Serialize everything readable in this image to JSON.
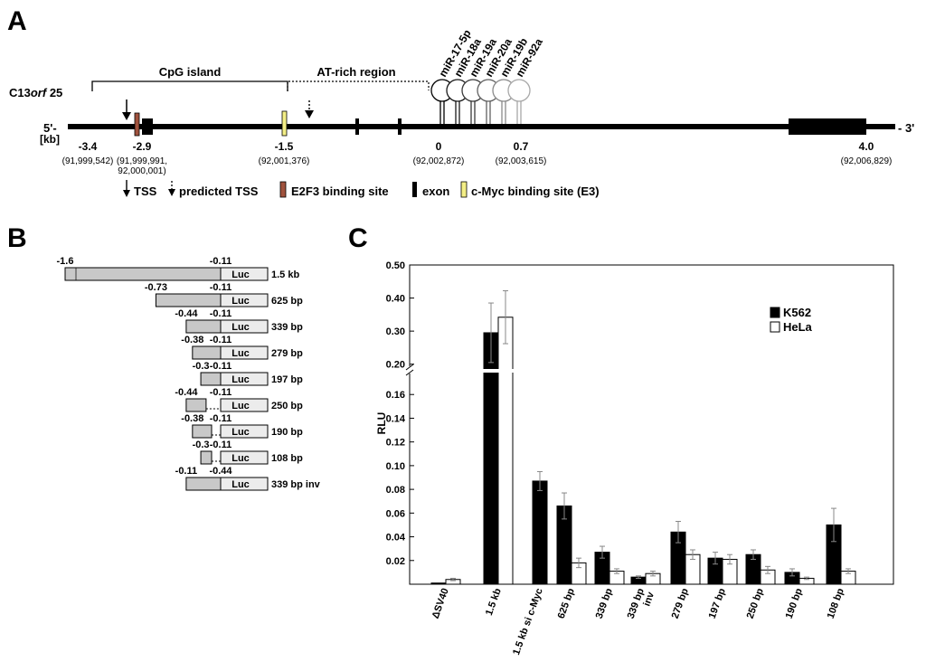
{
  "panelA": {
    "label": "A",
    "gene_prefix": "C13",
    "gene_italic": "orf",
    "gene_suffix": " 25",
    "five_prime": "5'-",
    "three_prime": "- 3'",
    "kb_label": "[kb]",
    "cpg_island": "CpG island",
    "at_rich": "AT-rich region",
    "mirnas": [
      "miR-17-5p",
      "miR-18a",
      "miR-19a",
      "miR-20a",
      "miR-19b",
      "miR-92a"
    ],
    "positions": [
      {
        "kb": "-3.4",
        "coord": "(91,999,542)"
      },
      {
        "kb": "-2.9",
        "coord": "(91,999,991,",
        "coord2": "92,000,001)"
      },
      {
        "kb": "-1.5",
        "coord": "(92,001,376)"
      },
      {
        "kb": "0",
        "coord": "(92,002,872)"
      },
      {
        "kb": "0.7",
        "coord": "(92,003,615)"
      },
      {
        "kb": "4.0",
        "coord": "(92,006,829)"
      }
    ],
    "legend": {
      "tss": "TSS",
      "predicted_tss": "predicted TSS",
      "e2f3": "E2F3 binding site",
      "exon": "exon",
      "cmyc": "c-Myc binding site (E3)"
    },
    "colors": {
      "e2f3": "#a0523d",
      "cmyc": "#f3ee86",
      "exon": "#000000"
    }
  },
  "panelB": {
    "label": "B",
    "luc": "Luc",
    "constructs": [
      {
        "start": "-1.6",
        "end": "-0.11",
        "name": "1.5 kb",
        "type": "normal"
      },
      {
        "start": "-0.73",
        "end": "-0.11",
        "name": "625 bp",
        "type": "normal"
      },
      {
        "start": "-0.44",
        "end": "-0.11",
        "name": "339 bp",
        "type": "normal"
      },
      {
        "start": "-0.38",
        "end": "-0.11",
        "name": "279 bp",
        "type": "normal"
      },
      {
        "start": "-0.3",
        "end": "-0.11",
        "name": "197 bp",
        "type": "normal"
      },
      {
        "start": "-0.44",
        "end": "-0.11",
        "name": "250 bp",
        "type": "deletion"
      },
      {
        "start": "-0.38",
        "end": "-0.11",
        "name": "190 bp",
        "type": "deletion"
      },
      {
        "start": "-0.3",
        "end": "-0.11",
        "name": "108 bp",
        "type": "deletion"
      },
      {
        "start": "-0.11",
        "end": "-0.44",
        "name": "339 bp inv",
        "type": "inverted"
      }
    ]
  },
  "panelC": {
    "label": "C"
  },
  "chart_data": {
    "type": "bar",
    "title": "",
    "xlabel": "",
    "ylabel": "RLU",
    "axis_break": {
      "lower": [
        0,
        0.18
      ],
      "upper": [
        0.18,
        0.5
      ]
    },
    "yticks": [
      "0.02",
      "0.04",
      "0.06",
      "0.08",
      "0.10",
      "0.12",
      "0.14",
      "0.16",
      "0.20",
      "0.30",
      "0.40",
      "0.50"
    ],
    "categories": [
      "ΔSV40",
      "1.5 kb",
      "1.5 kb si c-Myc",
      "625 bp",
      "339 bp",
      "339 bp inv",
      "279 bp",
      "197 bp",
      "250 bp",
      "190 bp",
      "108 bp"
    ],
    "category_lines": [
      [
        "ΔSV40"
      ],
      [
        "1.5 kb"
      ],
      [
        "1.5 kb si c-Myc"
      ],
      [
        "625 bp"
      ],
      [
        "339 bp"
      ],
      [
        "339 bp",
        "inv"
      ],
      [
        "279 bp"
      ],
      [
        "197 bp"
      ],
      [
        "250 bp"
      ],
      [
        "190 bp"
      ],
      [
        "108 bp"
      ]
    ],
    "series": [
      {
        "name": "K562",
        "color": "#000000",
        "values": [
          0.001,
          0.295,
          0.087,
          0.066,
          0.027,
          0.006,
          0.044,
          0.022,
          0.025,
          0.01,
          0.05
        ],
        "errors": [
          0,
          0.09,
          0.008,
          0.011,
          0.005,
          0.001,
          0.009,
          0.005,
          0.004,
          0.003,
          0.014
        ]
      },
      {
        "name": "HeLa",
        "color": "#ffffff",
        "values": [
          0.004,
          0.342,
          null,
          0.018,
          0.011,
          0.009,
          0.025,
          0.021,
          0.012,
          0.005,
          0.011
        ],
        "errors": [
          0.001,
          0.08,
          null,
          0.004,
          0.002,
          0.002,
          0.004,
          0.004,
          0.003,
          0.001,
          0.002
        ]
      }
    ],
    "legend": [
      "K562",
      "HeLa"
    ],
    "legend_position": "top-right"
  }
}
